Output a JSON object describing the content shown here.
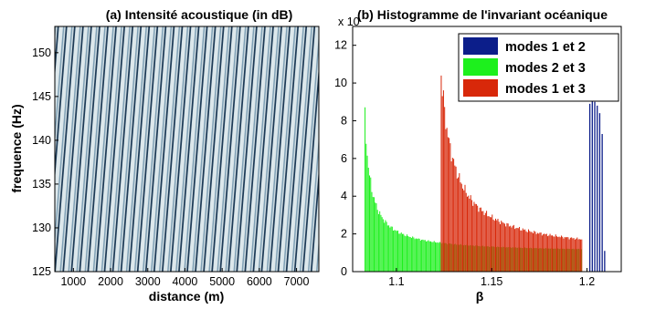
{
  "chart_data": [
    {
      "type": "heatmap",
      "title": "(a) Intensité acoustique (in dB)",
      "xlabel": "distance (m)",
      "ylabel": "frequence (Hz)",
      "xlim": [
        500,
        7600
      ],
      "ylim": [
        125,
        153
      ],
      "x_ticks": [
        1000,
        2000,
        3000,
        4000,
        5000,
        6000,
        7000
      ],
      "y_ticks": [
        125,
        130,
        135,
        140,
        145,
        150
      ],
      "colors": {
        "light": "#dde8ec",
        "dark": "#1d3a56",
        "mid": "#7fa0b5"
      },
      "grid": false
    },
    {
      "type": "bar",
      "title": "(b) Histogramme de l'invariant océanique",
      "xlabel": "β",
      "ylabel": "",
      "xlim": [
        1.077,
        1.218
      ],
      "ylim": [
        0,
        13
      ],
      "y_exponent_label": "x 10",
      "x_ticks": [
        1.1,
        1.15,
        1.2
      ],
      "x_tick_labels": [
        "1.1",
        "1.15",
        "1.2"
      ],
      "y_ticks": [
        0,
        2,
        4,
        6,
        8,
        10,
        12
      ],
      "legend_position": "top-right",
      "series": [
        {
          "name": "modes 1 et 2",
          "color": "#0c1e8a",
          "x": [
            1.2015,
            1.2028,
            1.2041,
            1.2054,
            1.2067,
            1.208,
            1.2093
          ],
          "values": [
            8.9,
            9.1,
            9.0,
            8.8,
            8.4,
            7.3,
            1.1
          ]
        },
        {
          "name": "modes 2 et 3",
          "color": "#1df01d",
          "x_start": 1.0835,
          "x_end": 1.1975,
          "peak": 8.8,
          "decay": 1.2,
          "floor": 1.0
        },
        {
          "name": "modes 1 et 3",
          "color": "#d8280a",
          "x_start": 1.1235,
          "x_end": 1.1975,
          "peak": 11.3,
          "decay": 0.55,
          "floor": 0.9
        }
      ]
    }
  ]
}
